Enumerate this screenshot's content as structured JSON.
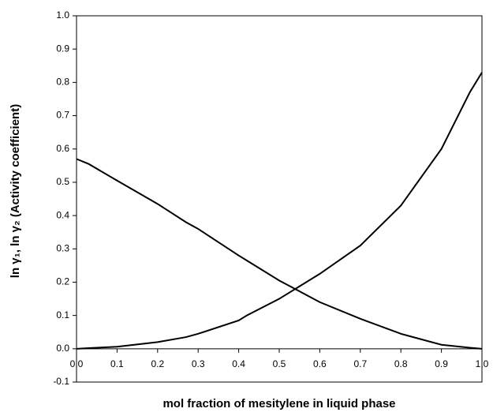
{
  "chart_data": {
    "type": "line",
    "xlabel": "mol fraction of mesitylene in liquid phase",
    "ylabel": "ln γ₁, ln γ₂ (Activity coefficient)",
    "x": [
      0,
      0.03,
      0.1,
      0.2,
      0.27,
      0.3,
      0.4,
      0.42,
      0.5,
      0.6,
      0.7,
      0.8,
      0.9,
      0.97,
      1.0
    ],
    "series": [
      {
        "color": "#000000",
        "values": [
          0.57,
          0.555,
          0.505,
          0.435,
          0.38,
          0.36,
          0.28,
          0.265,
          0.205,
          0.14,
          0.09,
          0.045,
          0.012,
          0.003,
          0
        ]
      },
      {
        "color": "#000000",
        "values": [
          0,
          0.002,
          0.006,
          0.02,
          0.035,
          0.045,
          0.085,
          0.1,
          0.15,
          0.225,
          0.31,
          0.43,
          0.6,
          0.77,
          0.83
        ]
      }
    ],
    "xlim": [
      0,
      1
    ],
    "xticks": [
      {
        "value": 0,
        "label": "0.0"
      },
      0.1,
      0.2,
      0.3,
      0.4,
      0.5,
      0.6,
      0.7,
      0.8,
      0.9,
      {
        "value": 1,
        "label": "1.0"
      }
    ],
    "ylim": [
      -0.1,
      1
    ],
    "yticks": [
      -0.1,
      {
        "value": 0,
        "label": "0.0"
      },
      0.1,
      0.2,
      0.3,
      0.4,
      0.5,
      0.6,
      0.7,
      0.8,
      0.9,
      {
        "value": 1,
        "label": "1.0"
      }
    ],
    "grid": false
  }
}
